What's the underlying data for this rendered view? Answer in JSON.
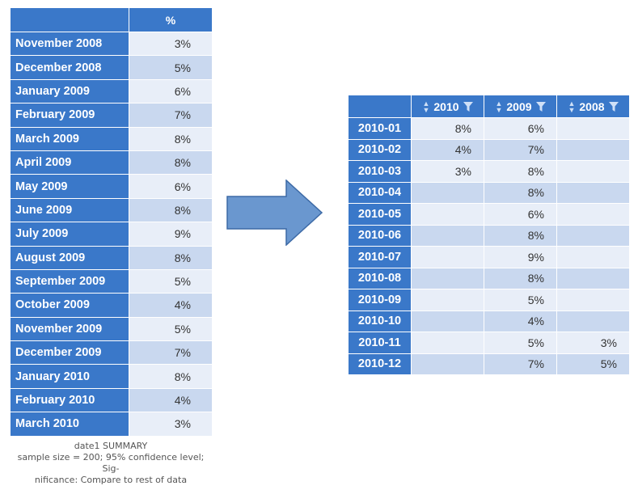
{
  "colors": {
    "header_blue": "#3a78c9",
    "row_light": "#e8eef8",
    "row_dark": "#c9d8ef",
    "arrow_fill": "#6a97cf",
    "arrow_stroke": "#3d6aa6"
  },
  "left_table": {
    "column_header": "%",
    "rows": [
      {
        "label": "November 2008",
        "value": "3%"
      },
      {
        "label": "December 2008",
        "value": "5%"
      },
      {
        "label": "January 2009",
        "value": "6%"
      },
      {
        "label": "February 2009",
        "value": "7%"
      },
      {
        "label": "March 2009",
        "value": "8%"
      },
      {
        "label": "April 2009",
        "value": "8%"
      },
      {
        "label": "May 2009",
        "value": "6%"
      },
      {
        "label": "June 2009",
        "value": "8%"
      },
      {
        "label": "July 2009",
        "value": "9%"
      },
      {
        "label": "August 2009",
        "value": "8%"
      },
      {
        "label": "September 2009",
        "value": "5%"
      },
      {
        "label": "October 2009",
        "value": "4%"
      },
      {
        "label": "November 2009",
        "value": "5%"
      },
      {
        "label": "December 2009",
        "value": "7%"
      },
      {
        "label": "January 2010",
        "value": "8%"
      },
      {
        "label": "February 2010",
        "value": "4%"
      },
      {
        "label": "March 2010",
        "value": "3%"
      }
    ],
    "caption": {
      "line1": "date1 SUMMARY",
      "line2": "sample size = 200; 95% confidence level; Sig-",
      "line3": "nificance: Compare to rest of data"
    }
  },
  "right_table": {
    "columns": [
      "2010",
      "2009",
      "2008"
    ],
    "icons": {
      "sort": "sort-updown-icon",
      "filter": "filter-funnel-icon"
    },
    "rows": [
      {
        "label": "2010-01",
        "v2010": "8%",
        "v2009": "6%",
        "v2008": ""
      },
      {
        "label": "2010-02",
        "v2010": "4%",
        "v2009": "7%",
        "v2008": ""
      },
      {
        "label": "2010-03",
        "v2010": "3%",
        "v2009": "8%",
        "v2008": ""
      },
      {
        "label": "2010-04",
        "v2010": "",
        "v2009": "8%",
        "v2008": ""
      },
      {
        "label": "2010-05",
        "v2010": "",
        "v2009": "6%",
        "v2008": ""
      },
      {
        "label": "2010-06",
        "v2010": "",
        "v2009": "8%",
        "v2008": ""
      },
      {
        "label": "2010-07",
        "v2010": "",
        "v2009": "9%",
        "v2008": ""
      },
      {
        "label": "2010-08",
        "v2010": "",
        "v2009": "8%",
        "v2008": ""
      },
      {
        "label": "2010-09",
        "v2010": "",
        "v2009": "5%",
        "v2008": ""
      },
      {
        "label": "2010-10",
        "v2010": "",
        "v2009": "4%",
        "v2008": ""
      },
      {
        "label": "2010-11",
        "v2010": "",
        "v2009": "5%",
        "v2008": "3%"
      },
      {
        "label": "2010-12",
        "v2010": "",
        "v2009": "7%",
        "v2008": "5%"
      }
    ]
  }
}
